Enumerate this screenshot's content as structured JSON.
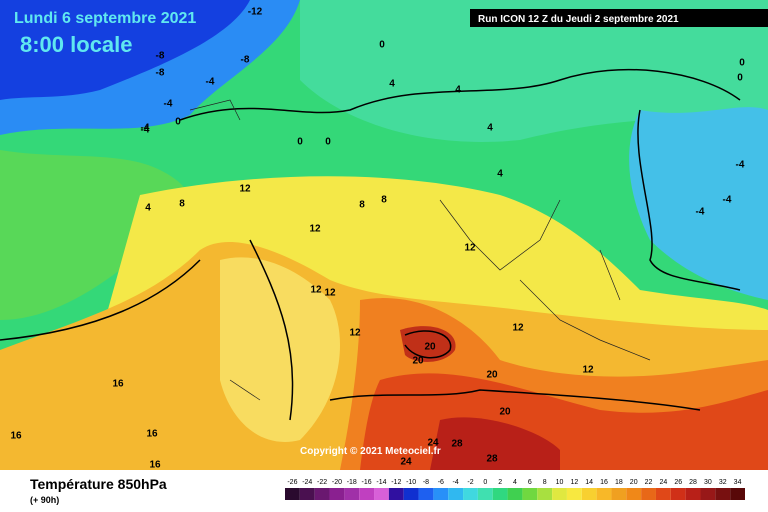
{
  "header": {
    "date": "Lundi 6 septembre 2021",
    "time": "8:00 locale",
    "run": "Run ICON 12 Z du Jeudi 2 septembre 2021"
  },
  "copyright": "Copyright © 2021 Meteociel.fr",
  "footer": {
    "title": "Température 850hPa",
    "subtitle": "(+ 90h)"
  },
  "legend": {
    "ticks": [
      -26,
      -24,
      -22,
      -20,
      -18,
      -16,
      -14,
      -12,
      -10,
      -8,
      -6,
      -4,
      -2,
      0,
      2,
      4,
      6,
      8,
      10,
      12,
      14,
      16,
      18,
      20,
      22,
      24,
      26,
      28,
      30,
      32,
      34
    ],
    "colors": [
      "#2a0a2e",
      "#4a1050",
      "#6a1870",
      "#8a2090",
      "#a030a8",
      "#c040c0",
      "#d860d8",
      "#3010a0",
      "#1030d0",
      "#1e60f0",
      "#2890f8",
      "#30b8f0",
      "#40d8e0",
      "#40e0b0",
      "#30d880",
      "#40d050",
      "#70d840",
      "#a8e040",
      "#e0e840",
      "#f8e840",
      "#f8d030",
      "#f8b828",
      "#f0a020",
      "#f08818",
      "#e86818",
      "#e04818",
      "#d03018",
      "#b82018",
      "#981818",
      "#781010",
      "#580808"
    ]
  },
  "map_labels": [
    -12,
    -8,
    -8,
    -8,
    -4,
    -4,
    -4,
    0,
    0,
    0,
    0,
    4,
    4,
    4,
    4,
    4,
    8,
    8,
    8,
    12,
    12,
    12,
    12,
    12,
    12,
    12,
    12,
    16,
    16,
    16,
    16,
    20,
    20,
    20,
    20,
    24,
    24,
    28,
    28,
    -4,
    -4,
    -4,
    0,
    0,
    -4
  ]
}
